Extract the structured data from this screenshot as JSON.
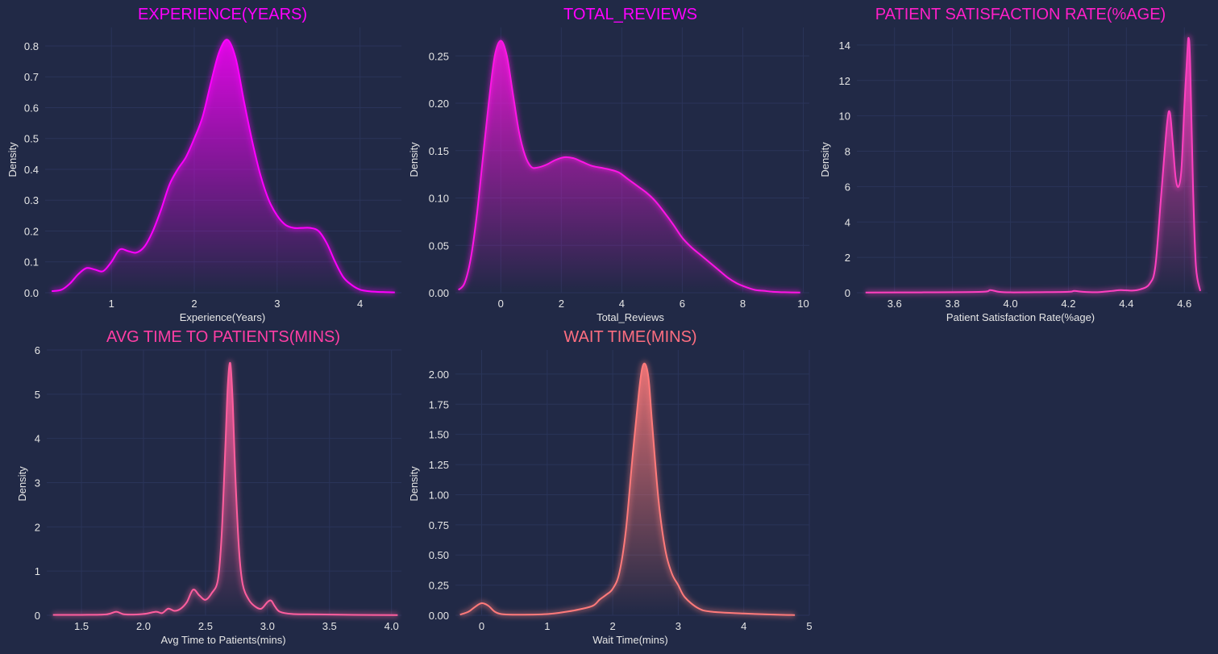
{
  "colors": {
    "background": "#212946",
    "grid": "#2A3459",
    "text": "#e6e6e6"
  },
  "chart_data": [
    {
      "type": "area",
      "title": "EXPERIENCE(YEARS)",
      "title_color": "#FF00FF",
      "line_color": "#FF00FF",
      "xlabel": "Experience(Years)",
      "ylabel": "Density",
      "xlim": [
        0.2,
        4.5
      ],
      "ylim": [
        0,
        0.86
      ],
      "xticks": [
        1,
        2,
        3,
        4
      ],
      "yticks": [
        0.0,
        0.1,
        0.2,
        0.3,
        0.4,
        0.5,
        0.6,
        0.7,
        0.8
      ],
      "ytick_decimals": 1,
      "x": [
        0.28,
        0.4,
        0.5,
        0.6,
        0.7,
        0.8,
        0.9,
        1.0,
        1.1,
        1.2,
        1.3,
        1.4,
        1.5,
        1.6,
        1.7,
        1.8,
        1.9,
        2.0,
        2.1,
        2.2,
        2.3,
        2.4,
        2.5,
        2.6,
        2.7,
        2.8,
        2.9,
        3.0,
        3.1,
        3.2,
        3.3,
        3.4,
        3.5,
        3.6,
        3.7,
        3.8,
        3.9,
        4.0,
        4.1,
        4.2,
        4.3,
        4.42
      ],
      "y": [
        0.005,
        0.01,
        0.03,
        0.06,
        0.08,
        0.075,
        0.07,
        0.1,
        0.14,
        0.135,
        0.13,
        0.15,
        0.2,
        0.27,
        0.35,
        0.4,
        0.44,
        0.5,
        0.57,
        0.68,
        0.78,
        0.82,
        0.76,
        0.62,
        0.49,
        0.38,
        0.3,
        0.25,
        0.22,
        0.21,
        0.21,
        0.21,
        0.2,
        0.16,
        0.1,
        0.05,
        0.025,
        0.01,
        0.005,
        0.003,
        0.002,
        0.001
      ]
    },
    {
      "type": "area",
      "title": "TOTAL_REVIEWS",
      "title_color": "#FF00FF",
      "line_color": "#FF14E6",
      "xlabel": "Total_Reviews",
      "ylabel": "Density",
      "xlim": [
        -1.5,
        10.2
      ],
      "ylim": [
        0,
        0.28
      ],
      "xticks": [
        0,
        2,
        4,
        6,
        8,
        10
      ],
      "yticks": [
        0.0,
        0.05,
        0.1,
        0.15,
        0.2,
        0.25
      ],
      "ytick_decimals": 2,
      "x": [
        -1.4,
        -1.2,
        -1.0,
        -0.8,
        -0.6,
        -0.4,
        -0.2,
        0,
        0.2,
        0.4,
        0.6,
        0.8,
        1.0,
        1.2,
        1.5,
        1.8,
        2.1,
        2.4,
        2.7,
        3.0,
        3.3,
        3.6,
        3.9,
        4.2,
        4.5,
        4.8,
        5.1,
        5.4,
        5.7,
        6.0,
        6.3,
        6.6,
        6.9,
        7.2,
        7.5,
        7.8,
        8.1,
        8.4,
        8.7,
        9.0,
        9.4,
        9.9
      ],
      "y": [
        0.003,
        0.01,
        0.035,
        0.08,
        0.14,
        0.2,
        0.25,
        0.266,
        0.25,
        0.21,
        0.17,
        0.145,
        0.133,
        0.132,
        0.135,
        0.14,
        0.143,
        0.142,
        0.138,
        0.134,
        0.132,
        0.13,
        0.127,
        0.12,
        0.113,
        0.106,
        0.097,
        0.085,
        0.072,
        0.058,
        0.048,
        0.04,
        0.032,
        0.024,
        0.016,
        0.01,
        0.006,
        0.003,
        0.002,
        0.001,
        0.0005,
        0.0002
      ]
    },
    {
      "type": "area",
      "title": "PATIENT SATISFACTION RATE(%AGE)",
      "title_color": "#FF1FC8",
      "line_color": "#FF40C0",
      "xlabel": "Patient Satisfaction Rate(%age)",
      "ylabel": "Density",
      "xlim": [
        3.47,
        4.68
      ],
      "ylim": [
        0,
        15
      ],
      "xticks": [
        3.6,
        3.8,
        4.0,
        4.2,
        4.4,
        4.6
      ],
      "yticks": [
        0,
        2,
        4,
        6,
        8,
        10,
        12,
        14
      ],
      "ytick_decimals": 0,
      "x": [
        3.5,
        3.7,
        3.9,
        3.93,
        3.96,
        4.0,
        4.1,
        4.2,
        4.22,
        4.25,
        4.3,
        4.35,
        4.38,
        4.42,
        4.45,
        4.48,
        4.5,
        4.52,
        4.54,
        4.55,
        4.56,
        4.57,
        4.58,
        4.59,
        4.6,
        4.61,
        4.615,
        4.62,
        4.63,
        4.64,
        4.655
      ],
      "y": [
        0.01,
        0.02,
        0.05,
        0.15,
        0.05,
        0.02,
        0.03,
        0.05,
        0.1,
        0.05,
        0.03,
        0.1,
        0.15,
        0.12,
        0.2,
        0.5,
        1.5,
        5.5,
        9.5,
        10.2,
        8.5,
        6.5,
        6.0,
        7.0,
        10.5,
        13.5,
        14.4,
        13.0,
        6.0,
        1.5,
        0.1
      ]
    },
    {
      "type": "area",
      "title": "AVG TIME TO PATIENTS(MINS)",
      "title_color": "#FF3EA5",
      "line_color": "#FF5E9E",
      "xlabel": "Avg Time to Patients(mins)",
      "ylabel": "Density",
      "xlim": [
        1.22,
        4.08
      ],
      "ylim": [
        0,
        6
      ],
      "xticks": [
        1.5,
        2.0,
        2.5,
        3.0,
        3.5,
        4.0
      ],
      "yticks": [
        0,
        1,
        2,
        3,
        4,
        5,
        6
      ],
      "ytick_decimals": 0,
      "x": [
        1.27,
        1.5,
        1.7,
        1.78,
        1.85,
        2.0,
        2.1,
        2.15,
        2.2,
        2.25,
        2.3,
        2.35,
        2.4,
        2.45,
        2.5,
        2.55,
        2.6,
        2.63,
        2.66,
        2.68,
        2.7,
        2.72,
        2.74,
        2.77,
        2.8,
        2.85,
        2.9,
        2.95,
        3.0,
        3.03,
        3.06,
        3.1,
        3.2,
        3.4,
        3.7,
        4.05
      ],
      "y": [
        0.01,
        0.01,
        0.02,
        0.08,
        0.02,
        0.03,
        0.08,
        0.05,
        0.15,
        0.1,
        0.15,
        0.3,
        0.58,
        0.45,
        0.35,
        0.5,
        0.8,
        1.8,
        3.8,
        5.2,
        5.7,
        4.8,
        3.2,
        1.5,
        0.7,
        0.35,
        0.2,
        0.15,
        0.3,
        0.33,
        0.2,
        0.08,
        0.03,
        0.02,
        0.01,
        0.005
      ]
    },
    {
      "type": "area",
      "title": "WAIT TIME(MINS)",
      "title_color": "#FE6E80",
      "line_color": "#FF7A7A",
      "xlabel": "Wait Time(mins)",
      "ylabel": "Density",
      "xlim": [
        -0.4,
        5.0
      ],
      "ylim": [
        0,
        2.2
      ],
      "xticks": [
        0,
        1,
        2,
        3,
        4,
        5
      ],
      "yticks": [
        0.0,
        0.25,
        0.5,
        0.75,
        1.0,
        1.25,
        1.5,
        1.75,
        2.0
      ],
      "ytick_decimals": 2,
      "x": [
        -0.33,
        -0.2,
        -0.1,
        0,
        0.1,
        0.2,
        0.3,
        0.5,
        1.0,
        1.3,
        1.5,
        1.7,
        1.8,
        1.9,
        2.0,
        2.1,
        2.2,
        2.3,
        2.4,
        2.45,
        2.5,
        2.55,
        2.6,
        2.7,
        2.8,
        2.9,
        3.0,
        3.1,
        3.3,
        3.5,
        4.0,
        4.5,
        4.78
      ],
      "y": [
        0.005,
        0.03,
        0.07,
        0.1,
        0.08,
        0.03,
        0.01,
        0.005,
        0.01,
        0.03,
        0.05,
        0.08,
        0.13,
        0.17,
        0.22,
        0.35,
        0.7,
        1.3,
        1.85,
        2.05,
        2.08,
        1.95,
        1.6,
        0.95,
        0.55,
        0.35,
        0.25,
        0.15,
        0.06,
        0.03,
        0.015,
        0.005,
        0.002
      ]
    }
  ]
}
